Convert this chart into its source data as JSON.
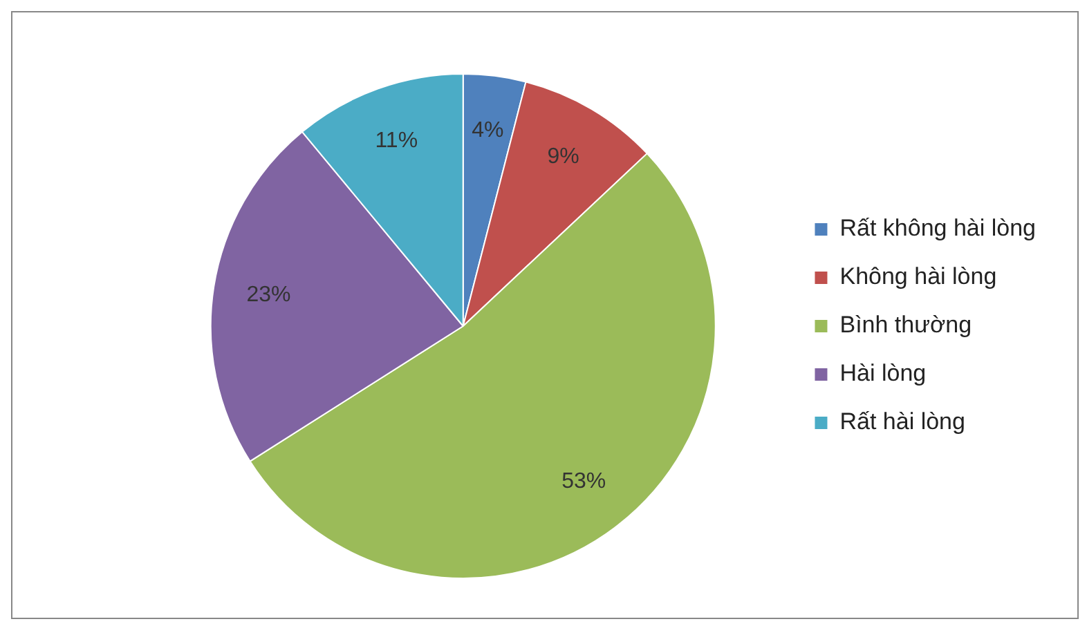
{
  "chart_data": {
    "type": "pie",
    "categories": [
      "Rất không hài lòng",
      "Không hài lòng",
      "Bình thường",
      "Hài lòng",
      "Rất hài lòng"
    ],
    "values": [
      4,
      9,
      53,
      23,
      11
    ],
    "value_labels": [
      "4%",
      "9%",
      "53%",
      "23%",
      "11%"
    ],
    "colors": [
      "#4f81bd",
      "#c0504d",
      "#9bbb59",
      "#8064a2",
      "#4bacc6"
    ],
    "legend": "right"
  }
}
